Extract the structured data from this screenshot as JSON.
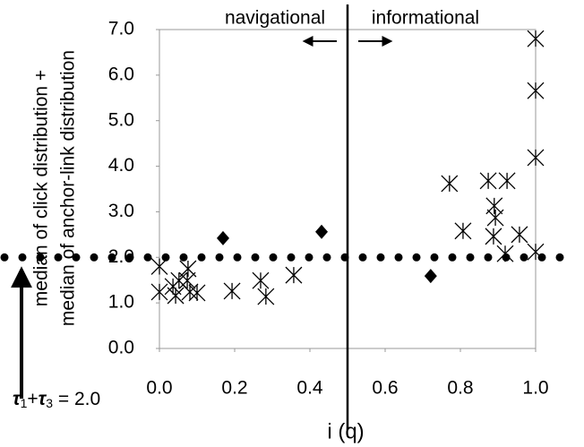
{
  "chart_data": {
    "type": "scatter",
    "xlabel": "i (q)",
    "ylabel": [
      "median of click distribution +",
      "median of anchor-link distribution"
    ],
    "xlim": [
      0,
      1.0
    ],
    "ylim": [
      0,
      7.0
    ],
    "xticks": [
      {
        "value": 0,
        "label": "0.0"
      },
      {
        "value": 0.2,
        "label": "0.2"
      },
      {
        "value": 0.4,
        "label": "0.4"
      },
      {
        "value": 0.6,
        "label": "0.6"
      },
      {
        "value": 0.8,
        "label": "0.8"
      },
      {
        "value": 1.0,
        "label": "1.0"
      }
    ],
    "yticks": [
      {
        "value": 0,
        "label": "0.0"
      },
      {
        "value": 1.0,
        "label": "1.0"
      },
      {
        "value": 2.0,
        "label": "2.0"
      },
      {
        "value": 3.0,
        "label": "3.0"
      },
      {
        "value": 4.0,
        "label": "4.0"
      },
      {
        "value": 5.0,
        "label": "5.0"
      },
      {
        "value": 6.0,
        "label": "6.0"
      },
      {
        "value": 7.0,
        "label": "7.0"
      }
    ],
    "threshold": 2.0,
    "divider": 0.5,
    "left_region": "navigational",
    "right_region": "informational",
    "threshold_label": [
      "τ",
      "1",
      "+",
      "τ",
      "3",
      " = 2.0"
    ],
    "series": [
      {
        "marker": "asterisk",
        "color": "#000000",
        "x": [
          0,
          0,
          0.036,
          0.043,
          0.052,
          0.074,
          0.076,
          0.081,
          0.1,
          0.193,
          0.269,
          0.283,
          0.357,
          0.771,
          0.807,
          0.874,
          0.89,
          0.893,
          0.888,
          0.924,
          0.919,
          0.957,
          1.0,
          1.0,
          1.0,
          1.0
        ],
        "values": [
          1.8,
          1.24,
          1.36,
          1.16,
          1.49,
          1.49,
          1.75,
          1.24,
          1.22,
          1.26,
          1.49,
          1.14,
          1.61,
          3.62,
          2.58,
          3.68,
          3.13,
          2.87,
          2.46,
          3.68,
          2.08,
          2.5,
          6.8,
          5.66,
          4.19,
          2.12
        ]
      },
      {
        "marker": "diamond",
        "color": "#000000",
        "x": [
          0.169,
          0.431,
          0.721
        ],
        "values": [
          2.42,
          2.56,
          1.59
        ]
      }
    ]
  }
}
